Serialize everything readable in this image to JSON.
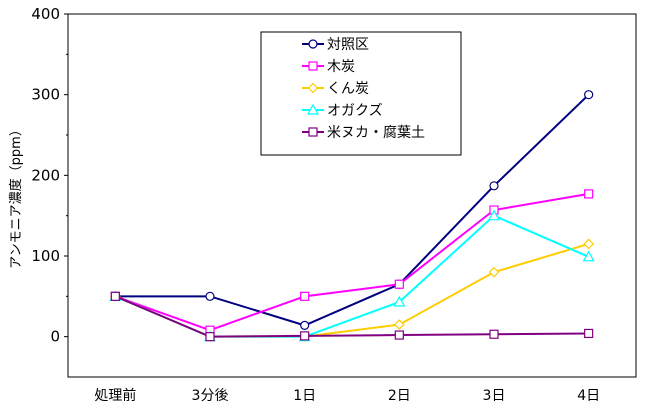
{
  "chart_data": {
    "type": "line",
    "categories": [
      "処理前",
      "3分後",
      "1日",
      "2日",
      "3日",
      "4日"
    ],
    "ylabel": "アンモニア濃度（ppm）",
    "ylim": [
      -50,
      400
    ],
    "yticks": [
      0,
      100,
      200,
      300,
      400
    ],
    "legend_position": "top-center",
    "series": [
      {
        "name": "対照区",
        "color": "#000080",
        "marker": "circle",
        "values": [
          50,
          50,
          14,
          65,
          187,
          300
        ]
      },
      {
        "name": "木炭",
        "color": "#ff00ff",
        "marker": "square",
        "values": [
          50,
          8,
          50,
          65,
          157,
          177
        ]
      },
      {
        "name": "くん炭",
        "color": "#ffcc00",
        "marker": "diamond",
        "values": [
          50,
          0,
          0,
          15,
          80,
          115
        ]
      },
      {
        "name": "オガクズ",
        "color": "#00ffff",
        "marker": "triangle",
        "values": [
          50,
          0,
          0,
          43,
          150,
          99
        ]
      },
      {
        "name": "米ヌカ・腐葉土",
        "color": "#800080",
        "marker": "square",
        "values": [
          50,
          0,
          1,
          2,
          3,
          4
        ]
      }
    ]
  }
}
